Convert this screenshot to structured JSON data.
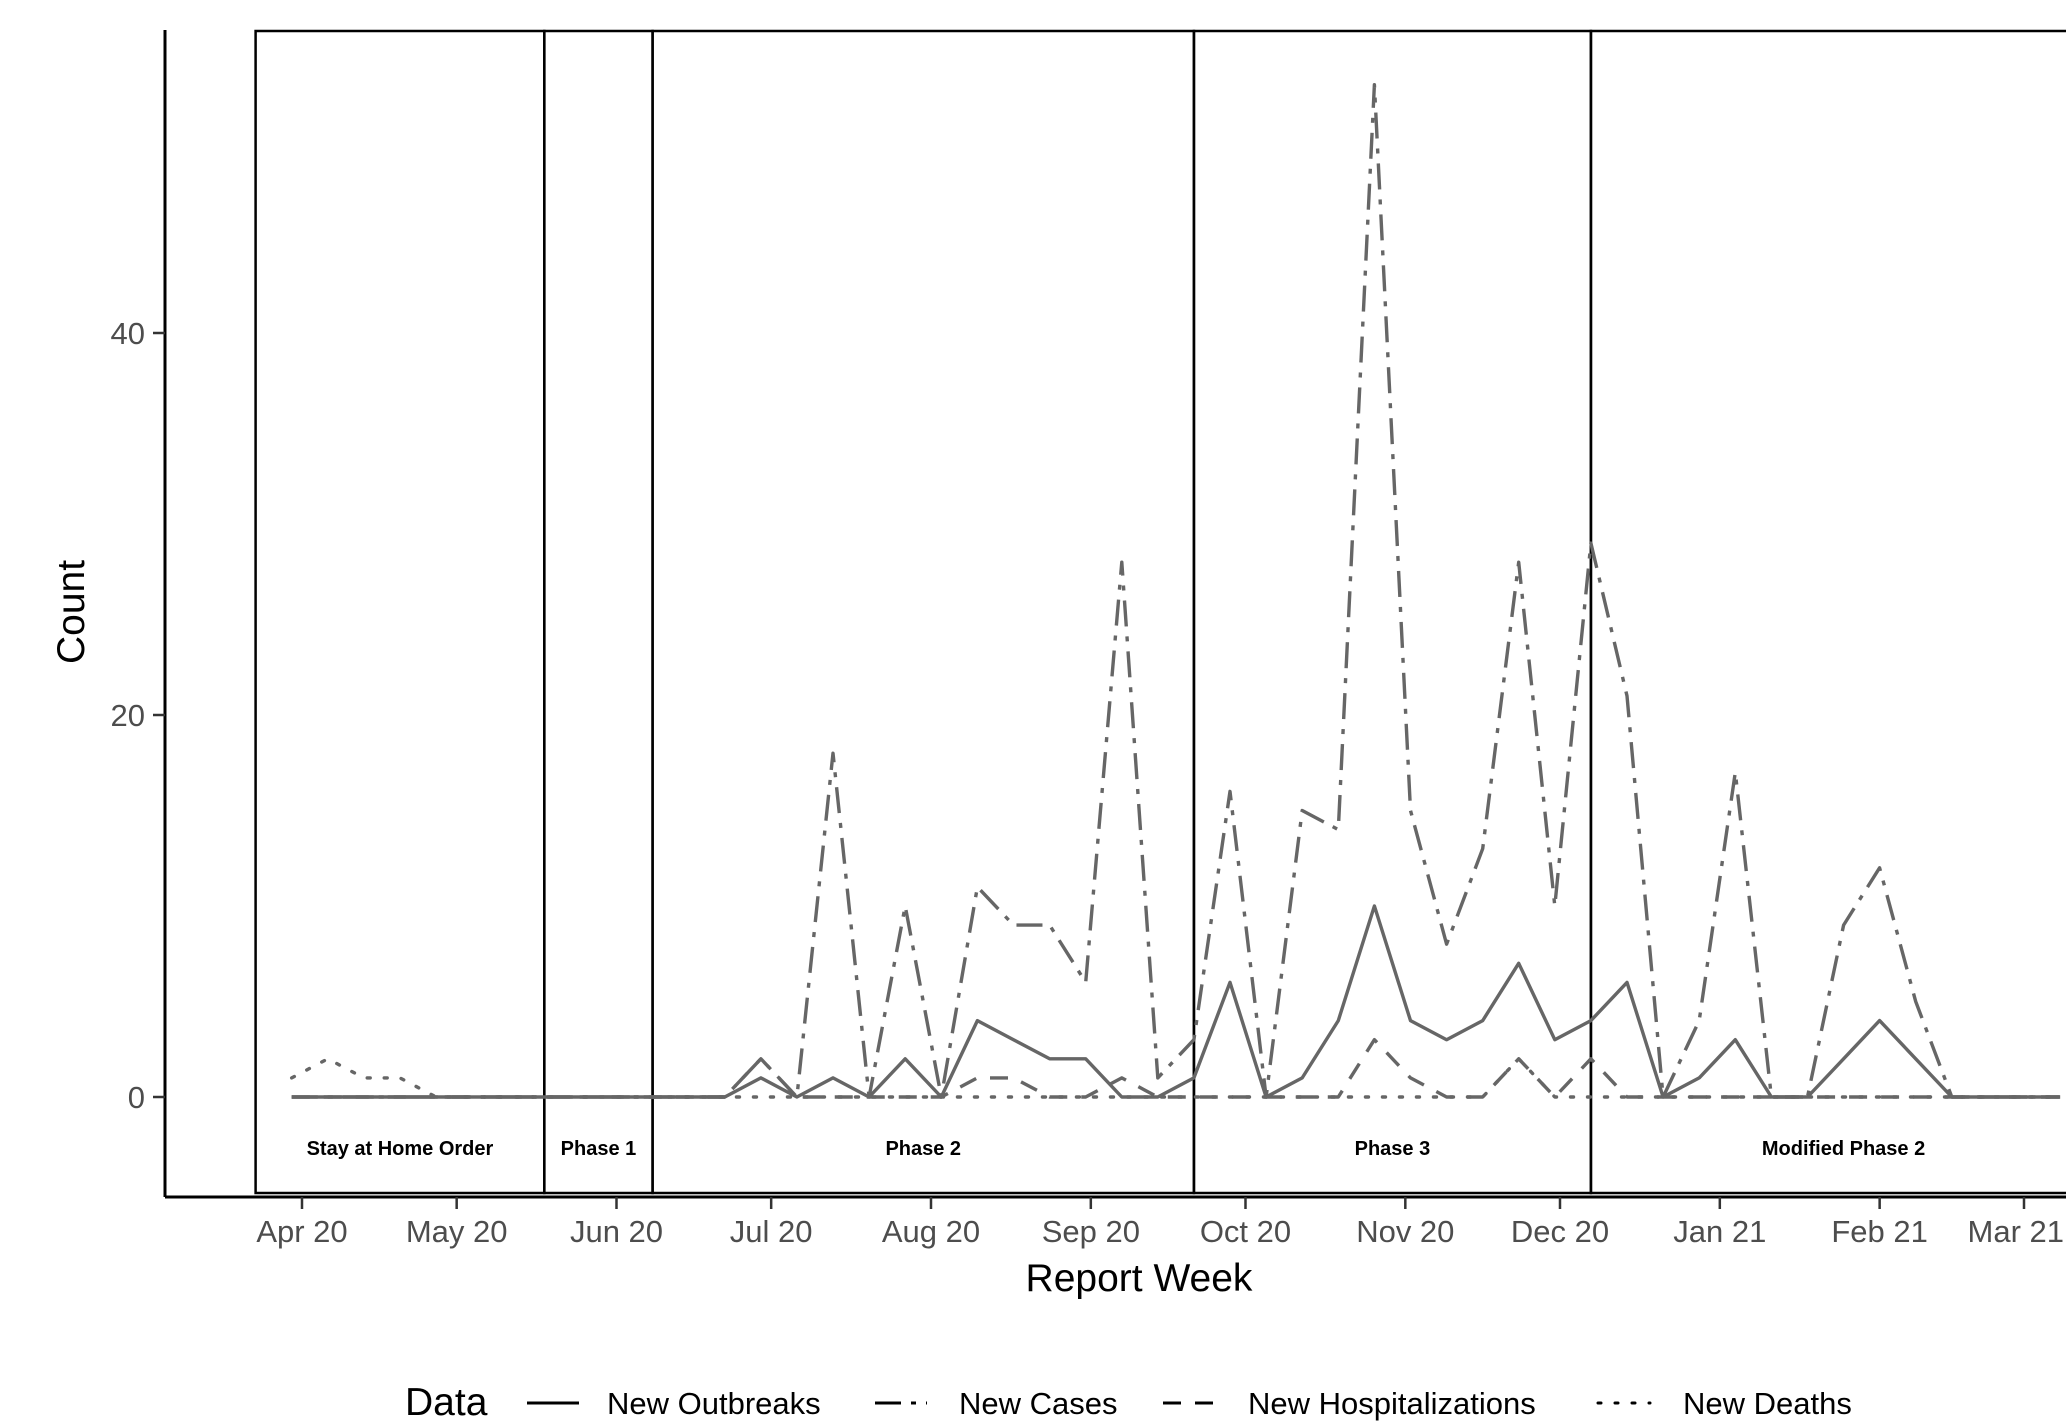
{
  "chart_data": {
    "type": "line",
    "xlabel": "Report Week",
    "ylabel": "Count",
    "ylim": [
      -5.3,
      55.5
    ],
    "yticks": [
      0,
      20,
      40
    ],
    "xticks": [
      {
        "label": "Apr 20",
        "date": "2020-04-01"
      },
      {
        "label": "May 20",
        "date": "2020-05-01"
      },
      {
        "label": "Jun 20",
        "date": "2020-06-01"
      },
      {
        "label": "Jul 20",
        "date": "2020-07-01"
      },
      {
        "label": "Aug 20",
        "date": "2020-08-01"
      },
      {
        "label": "Sep 20",
        "date": "2020-09-01"
      },
      {
        "label": "Oct 20",
        "date": "2020-10-01"
      },
      {
        "label": "Nov 20",
        "date": "2020-11-01"
      },
      {
        "label": "Dec 20",
        "date": "2020-12-01"
      },
      {
        "label": "Jan 21",
        "date": "2021-01-01"
      },
      {
        "label": "Feb 21",
        "date": "2021-02-01"
      },
      {
        "label": "Mar 21",
        "date": "2021-03-01"
      }
    ],
    "phases": [
      {
        "label": "Stay at Home Order",
        "start": "2020-03-23",
        "end": "2020-05-18"
      },
      {
        "label": "Phase 1",
        "start": "2020-05-18",
        "end": "2020-06-08"
      },
      {
        "label": "Phase 2",
        "start": "2020-06-08",
        "end": "2020-09-21"
      },
      {
        "label": "Phase 3",
        "start": "2020-09-21",
        "end": "2020-12-07"
      },
      {
        "label": "Modified Phase 2",
        "start": "2020-12-07",
        "end": "2021-03-15"
      }
    ],
    "legend": {
      "title": "Data",
      "position": "bottom"
    },
    "grid": false,
    "x": [
      "2020-03-30",
      "2020-04-06",
      "2020-04-13",
      "2020-04-20",
      "2020-04-27",
      "2020-05-04",
      "2020-05-11",
      "2020-05-18",
      "2020-05-25",
      "2020-06-01",
      "2020-06-08",
      "2020-06-15",
      "2020-06-22",
      "2020-06-29",
      "2020-07-06",
      "2020-07-13",
      "2020-07-20",
      "2020-07-27",
      "2020-08-03",
      "2020-08-10",
      "2020-08-17",
      "2020-08-24",
      "2020-08-31",
      "2020-09-07",
      "2020-09-14",
      "2020-09-21",
      "2020-09-28",
      "2020-10-05",
      "2020-10-12",
      "2020-10-19",
      "2020-10-26",
      "2020-11-02",
      "2020-11-09",
      "2020-11-16",
      "2020-11-23",
      "2020-11-30",
      "2020-12-07",
      "2020-12-14",
      "2020-12-21",
      "2020-12-28",
      "2021-01-04",
      "2021-01-11",
      "2021-01-18",
      "2021-01-25",
      "2021-02-01",
      "2021-02-08",
      "2021-02-15",
      "2021-02-22",
      "2021-03-01",
      "2021-03-08"
    ],
    "series": [
      {
        "name": "New Outbreaks",
        "dash": "solid",
        "values": [
          0,
          0,
          0,
          0,
          0,
          0,
          0,
          0,
          0,
          0,
          0,
          0,
          0,
          1,
          0,
          1,
          0,
          2,
          0,
          4,
          3,
          2,
          2,
          0,
          0,
          1,
          6,
          0,
          1,
          4,
          10,
          4,
          3,
          4,
          7,
          3,
          4,
          6,
          0,
          1,
          3,
          0,
          0,
          2,
          4,
          2,
          0,
          0,
          0,
          0
        ]
      },
      {
        "name": "New Cases",
        "dash": "longdash-dot",
        "values": [
          0,
          0,
          0,
          0,
          0,
          0,
          0,
          0,
          0,
          0,
          0,
          0,
          0,
          2,
          0,
          18,
          0,
          10,
          0,
          11,
          9,
          9,
          6,
          28,
          1,
          3,
          16,
          0,
          15,
          14,
          53,
          15,
          8,
          13,
          28,
          10,
          29,
          21,
          0,
          4,
          17,
          0,
          0,
          9,
          12,
          5,
          0,
          0,
          0,
          0
        ]
      },
      {
        "name": "New Hospitalizations",
        "dash": "dashed",
        "values": [
          0,
          0,
          0,
          0,
          0,
          0,
          0,
          0,
          0,
          0,
          0,
          0,
          0,
          2,
          0,
          0,
          0,
          0,
          0,
          1,
          1,
          0,
          0,
          1,
          0,
          0,
          0,
          0,
          0,
          0,
          3,
          1,
          0,
          0,
          2,
          0,
          2,
          0,
          0,
          0,
          0,
          0,
          0,
          0,
          0,
          0,
          0,
          0,
          0,
          0
        ]
      },
      {
        "name": "New Deaths",
        "dash": "dotted",
        "values": [
          1,
          2,
          1,
          1,
          0,
          0,
          0,
          0,
          0,
          0,
          0,
          0,
          0,
          0,
          0,
          0,
          0,
          0,
          0,
          0,
          0,
          0,
          0,
          0,
          0,
          0,
          0,
          0,
          0,
          0,
          0,
          0,
          0,
          0,
          2,
          0,
          0,
          0,
          0,
          0,
          0,
          0,
          0,
          0,
          0,
          0,
          0,
          0,
          0,
          0
        ]
      }
    ]
  }
}
